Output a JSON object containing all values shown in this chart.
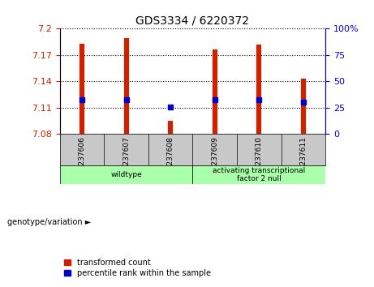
{
  "title": "GDS3334 / 6220372",
  "samples": [
    "GSM237606",
    "GSM237607",
    "GSM237608",
    "GSM237609",
    "GSM237610",
    "GSM237611"
  ],
  "transformed_counts": [
    7.183,
    7.189,
    7.095,
    7.176,
    7.182,
    7.143
  ],
  "percentile_ranks": [
    33,
    33,
    26,
    33,
    33,
    30
  ],
  "y_min": 7.08,
  "y_max": 7.2,
  "y_ticks": [
    7.08,
    7.11,
    7.14,
    7.17,
    7.2
  ],
  "right_y_ticks": [
    0,
    25,
    50,
    75,
    100
  ],
  "bar_color": "#cc2200",
  "dot_color": "#0000cc",
  "group_wt_label": "wildtype",
  "group_atf_label": "activating transcriptional\nfactor 2 null",
  "group_color": "#aaffaa",
  "legend_label_bar": "transformed count",
  "legend_label_dot": "percentile rank within the sample",
  "genotype_label": "genotype/variation ►",
  "left_tick_color": "#cc2200",
  "right_tick_color": "#0000cc",
  "sample_cell_color": "#c8c8c8",
  "wt_count": 3,
  "atf_count": 3
}
